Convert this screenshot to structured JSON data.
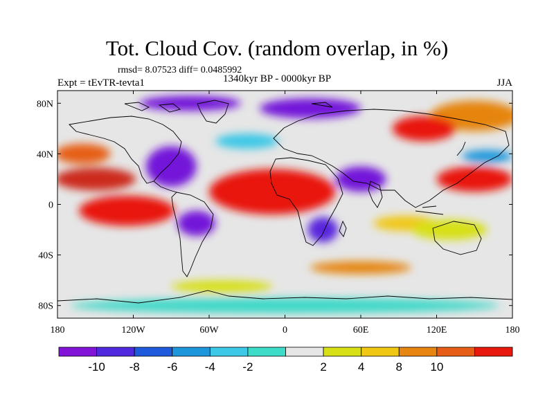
{
  "title": "Tot. Cloud Cov. (random overlap, in %)",
  "stats_line": "rmsd= 8.07523 diff= 0.0485992",
  "period": "1340kyr BP - 0000kyr BP",
  "experiment": "Expt = tEvTR-tevta1",
  "season": "JJA",
  "map": {
    "projection": "cylindrical-equidistant",
    "lon_range": [
      -180,
      180
    ],
    "lat_range": [
      -90,
      90
    ],
    "x_ticks": [
      {
        "value": -180,
        "label": "180"
      },
      {
        "value": -120,
        "label": "120W"
      },
      {
        "value": -60,
        "label": "60W"
      },
      {
        "value": 0,
        "label": "0"
      },
      {
        "value": 60,
        "label": "60E"
      },
      {
        "value": 120,
        "label": "120E"
      },
      {
        "value": 180,
        "label": "180"
      }
    ],
    "y_ticks": [
      {
        "value": 80,
        "label": "80N"
      },
      {
        "value": 40,
        "label": "40N"
      },
      {
        "value": 0,
        "label": "0"
      },
      {
        "value": -40,
        "label": "40S"
      },
      {
        "value": -80,
        "label": "80S"
      }
    ],
    "background_color": "#e6e6e6",
    "coastline_color": "#000000",
    "anomaly_patches": [
      {
        "lon": -150,
        "lat": 20,
        "rx": 32,
        "ry": 9,
        "color": "#cc2a1a"
      },
      {
        "lon": -125,
        "lat": -5,
        "rx": 38,
        "ry": 12,
        "color": "#e8190c"
      },
      {
        "lon": -160,
        "lat": 40,
        "rx": 22,
        "ry": 8,
        "color": "#e65e15"
      },
      {
        "lon": -10,
        "lat": 10,
        "rx": 50,
        "ry": 18,
        "color": "#e8190c"
      },
      {
        "lon": 150,
        "lat": 70,
        "rx": 35,
        "ry": 12,
        "color": "#e6850f"
      },
      {
        "lon": 150,
        "lat": 20,
        "rx": 30,
        "ry": 10,
        "color": "#e8190c"
      },
      {
        "lon": 110,
        "lat": 60,
        "rx": 25,
        "ry": 10,
        "color": "#e8190c"
      },
      {
        "lon": -90,
        "lat": 30,
        "rx": 20,
        "ry": 16,
        "color": "#7314d9"
      },
      {
        "lon": 20,
        "lat": 76,
        "rx": 40,
        "ry": 8,
        "color": "#7314d9"
      },
      {
        "lon": -75,
        "lat": 80,
        "rx": 40,
        "ry": 6,
        "color": "#7314d9"
      },
      {
        "lon": 60,
        "lat": 20,
        "rx": 20,
        "ry": 10,
        "color": "#7314d9"
      },
      {
        "lon": 95,
        "lat": -15,
        "rx": 25,
        "ry": 6,
        "color": "#f0c814"
      },
      {
        "lon": 130,
        "lat": -20,
        "rx": 30,
        "ry": 8,
        "color": "#d7e014"
      },
      {
        "lon": -50,
        "lat": -65,
        "rx": 40,
        "ry": 5,
        "color": "#d7e014"
      },
      {
        "lon": 30,
        "lat": -20,
        "rx": 12,
        "ry": 10,
        "color": "#5a28dd"
      },
      {
        "lon": -70,
        "lat": -15,
        "rx": 15,
        "ry": 10,
        "color": "#7314d9"
      },
      {
        "lon": 160,
        "lat": 38,
        "rx": 20,
        "ry": 5,
        "color": "#1e96dc"
      },
      {
        "lon": -30,
        "lat": 50,
        "rx": 25,
        "ry": 6,
        "color": "#3cc8e6"
      },
      {
        "lon": 0,
        "lat": -80,
        "rx": 170,
        "ry": 6,
        "color": "#3cd8c8"
      },
      {
        "lon": 60,
        "lat": -50,
        "rx": 40,
        "ry": 5,
        "color": "#e6850f"
      }
    ]
  },
  "colorbar": {
    "colors": [
      "#8214d7",
      "#5028dd",
      "#1e5adc",
      "#1e96dc",
      "#3cc8e6",
      "#3cdcc8",
      "#e6e6e6",
      "#d7e014",
      "#f0c814",
      "#e6850f",
      "#e65e15",
      "#e8190c"
    ],
    "labels": [
      "-10",
      "-8",
      "-6",
      "-4",
      "-2",
      "2",
      "4",
      "8",
      "10"
    ]
  }
}
